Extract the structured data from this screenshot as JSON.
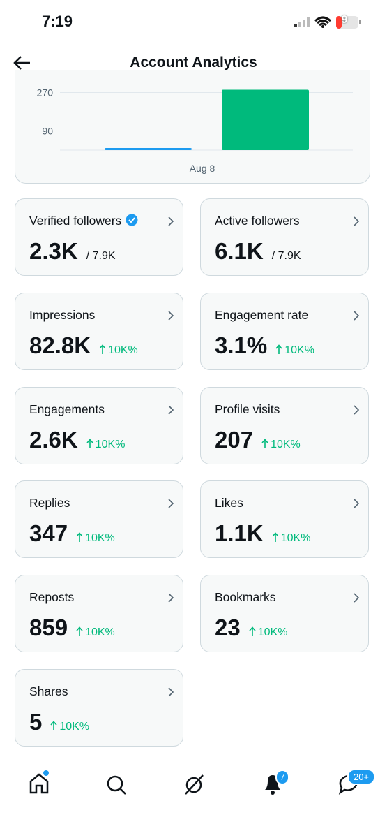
{
  "status_bar": {
    "time": "7:19",
    "battery": "9"
  },
  "header": {
    "title": "Account Analytics"
  },
  "chart": {
    "yticks": [
      90,
      270
    ],
    "ylim": [
      0,
      300
    ],
    "x_label": "Aug 8",
    "bars": [
      {
        "color": "#1d9bf0",
        "value": 10
      },
      {
        "color": "#00ba7c",
        "value": 283
      }
    ]
  },
  "cards": [
    {
      "title": "Verified followers",
      "value": "2.3K",
      "total": "/ 7.9K",
      "verified": true
    },
    {
      "title": "Active followers",
      "value": "6.1K",
      "total": "/ 7.9K"
    },
    {
      "title": "Impressions",
      "value": "82.8K",
      "change": "10K%"
    },
    {
      "title": "Engagement rate",
      "value": "3.1%",
      "change": "10K%"
    },
    {
      "title": "Engagements",
      "value": "2.6K",
      "change": "10K%"
    },
    {
      "title": "Profile visits",
      "value": "207",
      "change": "10K%"
    },
    {
      "title": "Replies",
      "value": "347",
      "change": "10K%"
    },
    {
      "title": "Likes",
      "value": "1.1K",
      "change": "10K%"
    },
    {
      "title": "Reposts",
      "value": "859",
      "change": "10K%"
    },
    {
      "title": "Bookmarks",
      "value": "23",
      "change": "10K%"
    },
    {
      "title": "Shares",
      "value": "5",
      "change": "10K%"
    }
  ],
  "nav": {
    "notifications_badge": "7",
    "messages_badge": "20+"
  }
}
